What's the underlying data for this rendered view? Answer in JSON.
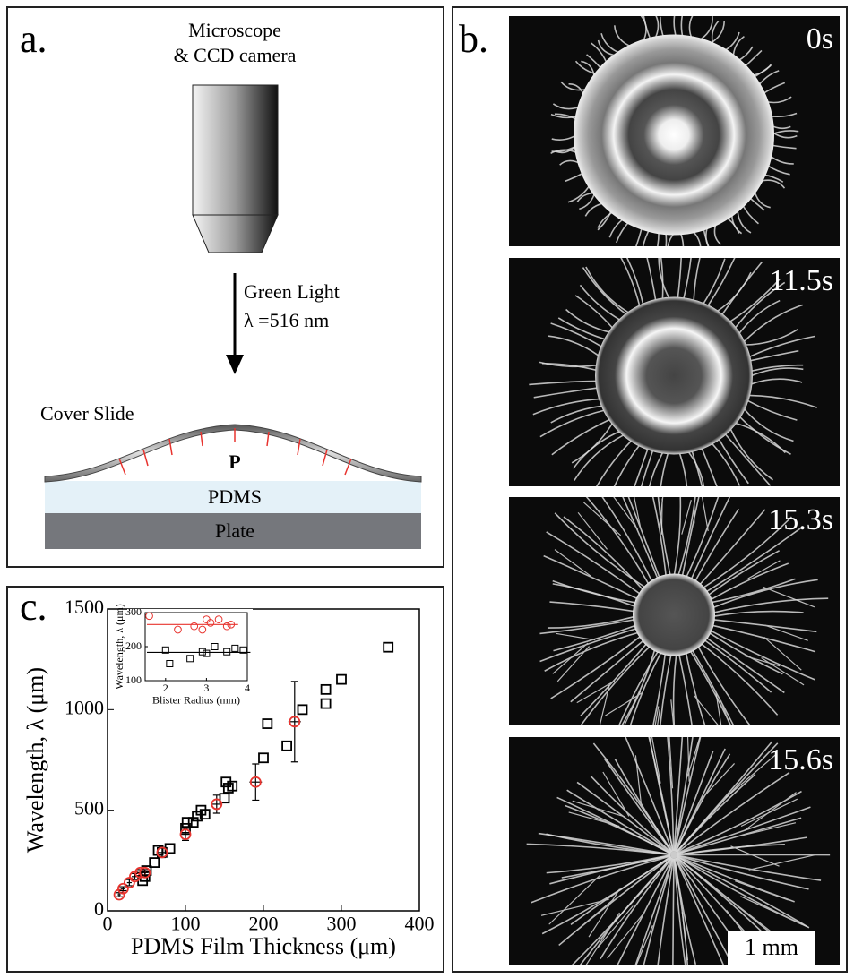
{
  "panel_a": {
    "label": "a.",
    "microscope": [
      "Microscope",
      "& CCD camera"
    ],
    "light": [
      "Green Light",
      "λ =516 nm"
    ],
    "cover_slide": "Cover Slide",
    "pressure": "P",
    "pdms": "PDMS",
    "plate": "Plate"
  },
  "panel_b": {
    "label": "b.",
    "frames": [
      "0s",
      "11.5s",
      "15.3s",
      "15.6s"
    ],
    "scale_bar": "1 mm"
  },
  "panel_c": {
    "label": "c."
  },
  "chart_data": [
    {
      "type": "scatter",
      "xlabel": "PDMS Film Thickness (μm)",
      "ylabel": "Wavelength, λ (μm)",
      "xlim": [
        0,
        400
      ],
      "ylim": [
        0,
        1500
      ],
      "xticks": [
        0,
        100,
        200,
        300,
        400
      ],
      "yticks": [
        0,
        500,
        1000,
        1500
      ],
      "series": [
        {
          "color": "#000000",
          "marker": "square",
          "x": [
            45,
            48,
            50,
            60,
            65,
            70,
            80,
            100,
            102,
            110,
            115,
            120,
            125,
            150,
            152,
            155,
            160,
            200,
            205,
            230,
            250,
            280,
            280,
            300,
            360
          ],
          "y": [
            150,
            170,
            200,
            240,
            300,
            290,
            310,
            410,
            440,
            440,
            470,
            500,
            480,
            560,
            640,
            610,
            620,
            760,
            930,
            820,
            1000,
            1030,
            1100,
            1150,
            1310
          ]
        },
        {
          "color": "#e8342f",
          "marker": "circle",
          "x": [
            15,
            20,
            28,
            35,
            42,
            48,
            70,
            100,
            140,
            190,
            240
          ],
          "y": [
            80,
            110,
            140,
            170,
            190,
            190,
            290,
            380,
            530,
            640,
            940
          ],
          "xerr": [
            2,
            3,
            3,
            4,
            4,
            4,
            5,
            6,
            7,
            8,
            8
          ],
          "yerr": [
            10,
            10,
            15,
            15,
            15,
            15,
            25,
            30,
            45,
            90,
            200
          ]
        }
      ]
    },
    {
      "type": "scatter",
      "xlabel": "Blister Radius (mm)",
      "ylabel": "Wavelength, λ (μm)",
      "xlim": [
        1.5,
        4
      ],
      "ylim": [
        100,
        300
      ],
      "xticks": [
        2,
        3,
        4
      ],
      "yticks": [
        100,
        200,
        300
      ],
      "series": [
        {
          "color": "#e8342f",
          "marker": "circle",
          "x": [
            1.6,
            2.3,
            2.7,
            2.9,
            3.0,
            3.1,
            3.3,
            3.5,
            3.6
          ],
          "y": [
            290,
            250,
            260,
            250,
            280,
            270,
            280,
            260,
            265
          ],
          "fit": 265
        },
        {
          "color": "#000000",
          "marker": "square",
          "x": [
            2.0,
            2.1,
            2.6,
            2.9,
            3.0,
            3.2,
            3.5,
            3.7,
            3.9
          ],
          "y": [
            190,
            150,
            165,
            185,
            180,
            200,
            185,
            195,
            190
          ],
          "fit": 183
        }
      ]
    }
  ]
}
